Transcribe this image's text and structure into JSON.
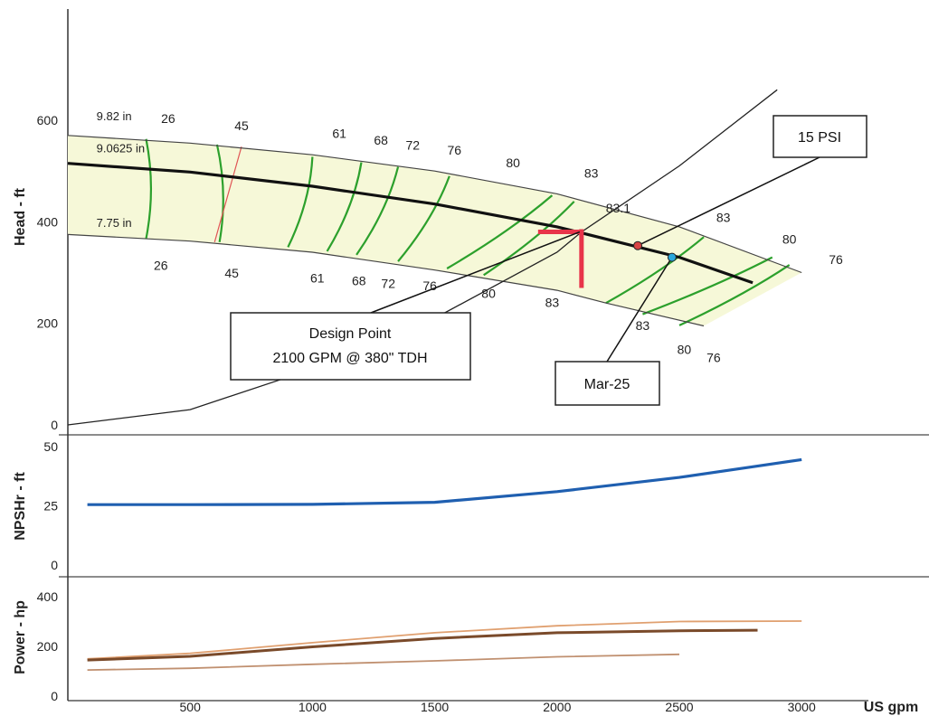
{
  "chart_data": [
    {
      "type": "line",
      "panel": "head",
      "ylabel": "Head - ft",
      "y_ticks": [
        "0",
        "200",
        "400",
        "600"
      ],
      "ylim": [
        0,
        680
      ],
      "xlim": [
        0,
        3100
      ],
      "colors": {
        "impeller": "#111111",
        "system": "#222222",
        "efficiency": "#2ca02c",
        "region": "#f6f8d8",
        "design": "#e8344a",
        "npsh_line": "#e05555"
      },
      "impeller_curves": [
        {
          "name": "9.82 in",
          "x": [
            0,
            500,
            1000,
            1500,
            2000,
            2500,
            3000
          ],
          "y": [
            570,
            555,
            532,
            500,
            455,
            390,
            300
          ]
        },
        {
          "name": "9.0625 in",
          "x": [
            0,
            500,
            1000,
            1500,
            2000,
            2500,
            2800
          ],
          "y": [
            515,
            498,
            470,
            435,
            390,
            330,
            280
          ]
        },
        {
          "name": "7.75 in",
          "x": [
            0,
            500,
            1000,
            1500,
            2000,
            2200,
            2600
          ],
          "y": [
            375,
            362,
            340,
            305,
            265,
            240,
            195
          ]
        }
      ],
      "system_curve": {
        "x": [
          0,
          500,
          1000,
          1500,
          2000,
          2100,
          2500,
          2900
        ],
        "y": [
          0,
          30,
          110,
          210,
          340,
          380,
          510,
          660
        ]
      },
      "efficiency_lines": [
        {
          "top": [
            320,
            563
          ],
          "bottom": [
            320,
            367
          ]
        },
        {
          "top": [
            610,
            552
          ],
          "bottom": [
            620,
            360
          ]
        },
        {
          "top": [
            1000,
            528
          ],
          "bottom": [
            900,
            350
          ]
        },
        {
          "top": [
            1200,
            517
          ],
          "bottom": [
            1060,
            342
          ]
        },
        {
          "top": [
            1350,
            508
          ],
          "bottom": [
            1180,
            335
          ]
        },
        {
          "top": [
            1560,
            490
          ],
          "bottom": [
            1350,
            322
          ]
        },
        {
          "top": [
            1980,
            452
          ],
          "bottom": [
            1550,
            308
          ]
        },
        {
          "top": [
            2070,
            440
          ],
          "bottom": [
            1700,
            295
          ]
        },
        {
          "top": [
            2600,
            370
          ],
          "bottom": [
            2200,
            240
          ]
        },
        {
          "top": [
            2880,
            330
          ],
          "bottom": [
            2350,
            218
          ]
        },
        {
          "top": [
            2950,
            315
          ],
          "bottom": [
            2500,
            196
          ]
        }
      ],
      "npsh_marker_line": {
        "top": [
          710,
          548
        ],
        "bottom": [
          600,
          360
        ]
      },
      "efficiency_labels": [
        {
          "text": "26",
          "x": 410,
          "y": 595
        },
        {
          "text": "45",
          "x": 710,
          "y": 580
        },
        {
          "text": "61",
          "x": 1110,
          "y": 565
        },
        {
          "text": "68",
          "x": 1280,
          "y": 552
        },
        {
          "text": "72",
          "x": 1410,
          "y": 542
        },
        {
          "text": "76",
          "x": 1580,
          "y": 532
        },
        {
          "text": "80",
          "x": 1820,
          "y": 507
        },
        {
          "text": "83",
          "x": 2140,
          "y": 487
        },
        {
          "text": "83.1",
          "x": 2250,
          "y": 418
        },
        {
          "text": "83",
          "x": 2680,
          "y": 400
        },
        {
          "text": "80",
          "x": 2950,
          "y": 357
        },
        {
          "text": "76",
          "x": 3140,
          "y": 317
        },
        {
          "text": "26",
          "x": 380,
          "y": 305
        },
        {
          "text": "45",
          "x": 670,
          "y": 290
        },
        {
          "text": "61",
          "x": 1020,
          "y": 280
        },
        {
          "text": "68",
          "x": 1190,
          "y": 275
        },
        {
          "text": "72",
          "x": 1310,
          "y": 270
        },
        {
          "text": "76",
          "x": 1480,
          "y": 265
        },
        {
          "text": "80",
          "x": 1720,
          "y": 250
        },
        {
          "text": "83",
          "x": 1980,
          "y": 232
        },
        {
          "text": "83",
          "x": 2350,
          "y": 187
        },
        {
          "text": "80",
          "x": 2520,
          "y": 140
        },
        {
          "text": "76",
          "x": 2640,
          "y": 124
        }
      ],
      "impeller_labels": [
        {
          "text": "9.82 in",
          "x": 80,
          "y": 600
        },
        {
          "text": "9.0625 in",
          "x": 80,
          "y": 537
        },
        {
          "text": "7.75 in",
          "x": 80,
          "y": 390
        }
      ],
      "design_point": {
        "x": 2100,
        "y": 380
      },
      "points": [
        {
          "name": "15 PSI",
          "x": 2330,
          "y": 353,
          "color": "#d94444"
        },
        {
          "name": "Mar-25",
          "x": 2470,
          "y": 330,
          "color": "#2aa7dc"
        }
      ],
      "callouts": [
        {
          "id": "design",
          "lines": [
            "Design Point",
            "2100 GPM @ 380\" TDH"
          ]
        },
        {
          "id": "psi",
          "lines": [
            "15 PSI"
          ]
        },
        {
          "id": "mar",
          "lines": [
            "Mar-25"
          ]
        }
      ]
    },
    {
      "type": "line",
      "panel": "npsh",
      "ylabel": "NPSHr - ft",
      "y_ticks": [
        "0",
        "25",
        "50"
      ],
      "ylim": [
        0,
        52
      ],
      "series": [
        {
          "x": [
            80,
            500,
            1000,
            1500,
            2000,
            2500,
            2800,
            3000
          ],
          "y": [
            25.5,
            25.5,
            25.6,
            26.5,
            31,
            37,
            41.5,
            44.5
          ],
          "color": "#1f5fb0"
        }
      ]
    },
    {
      "type": "line",
      "panel": "power",
      "ylabel": "Power - hp",
      "y_ticks": [
        "0",
        "200",
        "400"
      ],
      "ylim": [
        0,
        420
      ],
      "series": [
        {
          "x": [
            80,
            500,
            1000,
            1500,
            2000,
            2500,
            3000
          ],
          "y": [
            150,
            172,
            215,
            255,
            283,
            300,
            302
          ],
          "color": "#e0a070"
        },
        {
          "x": [
            80,
            500,
            1000,
            1500,
            2000,
            2500,
            2820
          ],
          "y": [
            145,
            160,
            198,
            232,
            255,
            263,
            265
          ],
          "color": "#7a4a2a"
        },
        {
          "x": [
            80,
            500,
            1000,
            1500,
            2000,
            2500
          ],
          "y": [
            105,
            112,
            128,
            142,
            158,
            168
          ],
          "color": "#c09070"
        }
      ]
    }
  ],
  "x_axis": {
    "ticks": [
      "500",
      "1000",
      "1500",
      "2000",
      "2500",
      "3000"
    ],
    "values": [
      500,
      1000,
      1500,
      2000,
      2500,
      3000
    ],
    "unit": "US gpm"
  }
}
